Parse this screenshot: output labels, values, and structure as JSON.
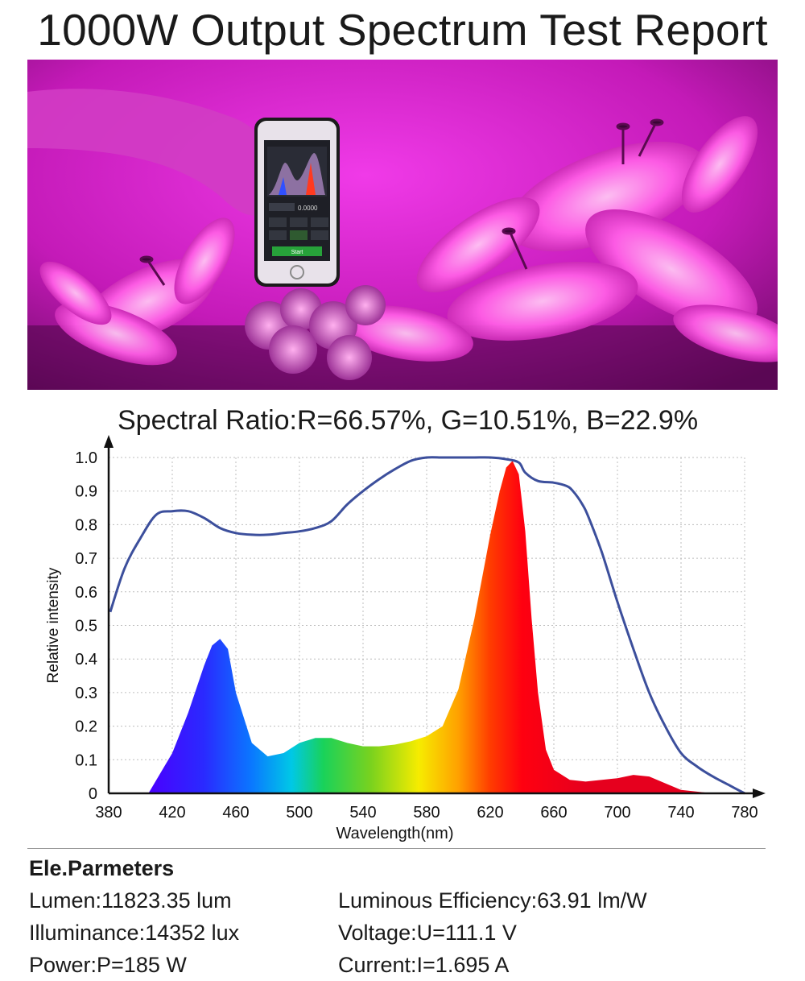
{
  "title": "1000W Output Spectrum Test Report",
  "photo": {
    "description_icon": "phone-spectrometer-photo-icon",
    "phone_screen": {
      "reading": "0.0000",
      "button_label": "Start"
    }
  },
  "spectral_ratio": "Spectral Ratio:R=66.57%, G=10.51%, B=22.9%",
  "chart_data": {
    "type": "area",
    "title": "",
    "xlabel": "Wavelength(nm)",
    "ylabel": "Relative intensity",
    "xlim": [
      380,
      780
    ],
    "ylim": [
      0,
      1.0
    ],
    "x_ticks": [
      380,
      420,
      460,
      500,
      540,
      580,
      620,
      660,
      700,
      740,
      780
    ],
    "y_ticks": [
      0,
      0.1,
      0.2,
      0.3,
      0.4,
      0.5,
      0.6,
      0.7,
      0.8,
      0.9,
      1.0
    ],
    "y_tick_labels": [
      "0",
      "0.1",
      "0.2",
      "0.3",
      "0.4",
      "0.5",
      "0.6",
      "0.7",
      "0.8",
      "0.9",
      "1.0"
    ],
    "grid": true,
    "legend": "none",
    "series": [
      {
        "style": "filled-spectrum",
        "x": [
          405,
          420,
          430,
          440,
          445,
          450,
          455,
          460,
          470,
          480,
          490,
          500,
          510,
          520,
          530,
          540,
          550,
          560,
          570,
          580,
          590,
          600,
          610,
          620,
          626,
          630,
          634,
          638,
          642,
          646,
          650,
          655,
          660,
          670,
          680,
          700,
          710,
          720,
          730,
          740,
          760,
          770
        ],
        "y": [
          0.0,
          0.12,
          0.24,
          0.38,
          0.44,
          0.46,
          0.43,
          0.3,
          0.15,
          0.11,
          0.12,
          0.15,
          0.165,
          0.165,
          0.15,
          0.14,
          0.14,
          0.145,
          0.155,
          0.17,
          0.2,
          0.31,
          0.52,
          0.77,
          0.9,
          0.97,
          0.99,
          0.95,
          0.78,
          0.52,
          0.3,
          0.13,
          0.07,
          0.04,
          0.035,
          0.045,
          0.055,
          0.05,
          0.03,
          0.01,
          0.0,
          0.0
        ]
      },
      {
        "style": "line",
        "color": "#3c4f9c",
        "x": [
          381,
          390,
          400,
          410,
          420,
          430,
          440,
          450,
          460,
          470,
          480,
          490,
          500,
          510,
          520,
          530,
          540,
          550,
          560,
          570,
          580,
          590,
          600,
          610,
          620,
          630,
          638,
          642,
          650,
          660,
          668,
          672,
          678,
          682,
          690,
          700,
          710,
          720,
          730,
          740,
          750,
          760,
          770,
          780
        ],
        "y": [
          0.54,
          0.67,
          0.76,
          0.83,
          0.84,
          0.84,
          0.82,
          0.79,
          0.775,
          0.77,
          0.77,
          0.775,
          0.78,
          0.79,
          0.81,
          0.86,
          0.9,
          0.935,
          0.965,
          0.99,
          1.0,
          1.0,
          1.0,
          1.0,
          1.0,
          0.995,
          0.985,
          0.955,
          0.93,
          0.925,
          0.915,
          0.9,
          0.86,
          0.82,
          0.72,
          0.57,
          0.43,
          0.3,
          0.2,
          0.12,
          0.08,
          0.05,
          0.025,
          0.0
        ]
      }
    ]
  },
  "parameters": {
    "heading": "Ele.Parmeters",
    "lumen": "Lumen:11823.35 lum",
    "luminous_efficiency": "Luminous Efficiency:63.91 lm/W",
    "illuminance": "Illuminance:14352 lux",
    "voltage": "Voltage:U=111.1 V",
    "power": "Power:P=185 W",
    "current": "Current:I=1.695 A"
  }
}
